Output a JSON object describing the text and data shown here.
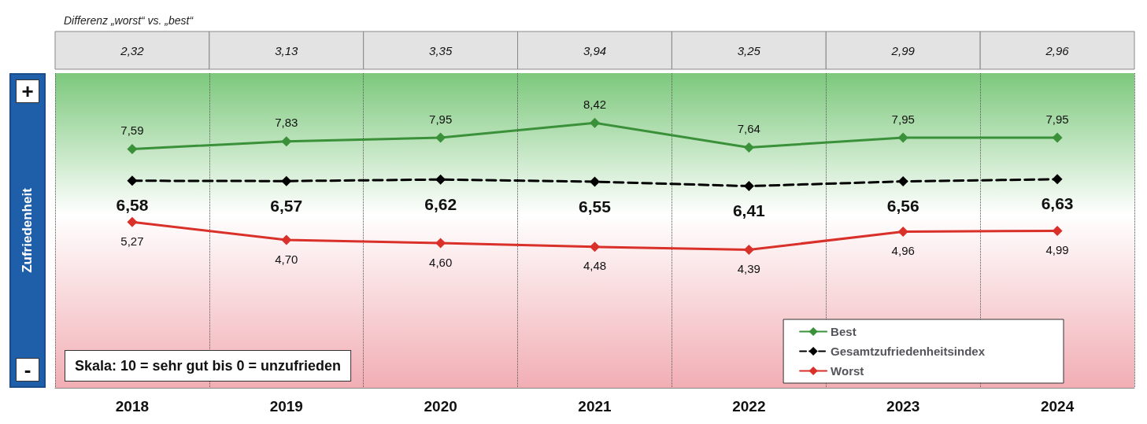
{
  "chart_data": {
    "type": "line",
    "title": "Differenz „worst“ vs. „best“",
    "ylabel": "Zufriedenheit",
    "categories": [
      "2018",
      "2019",
      "2020",
      "2021",
      "2022",
      "2023",
      "2024"
    ],
    "series": [
      {
        "name": "Best",
        "color": "#3a913a",
        "values": [
          7.59,
          7.83,
          7.95,
          8.42,
          7.64,
          7.95,
          7.95
        ],
        "value_labels": [
          "7,59",
          "7,83",
          "7,95",
          "8,42",
          "7,64",
          "7,95",
          "7,95"
        ]
      },
      {
        "name": "Gesamtzufriedenheitsindex",
        "color": "#000000",
        "line_style": "dashed",
        "values": [
          6.58,
          6.57,
          6.62,
          6.55,
          6.41,
          6.56,
          6.63
        ],
        "value_labels": [
          "6,58",
          "6,57",
          "6,62",
          "6,55",
          "6,41",
          "6,56",
          "6,63"
        ]
      },
      {
        "name": "Worst",
        "color": "#d9302a",
        "values": [
          5.27,
          4.7,
          4.6,
          4.48,
          4.39,
          4.96,
          4.99
        ],
        "value_labels": [
          "5,27",
          "4,70",
          "4,60",
          "4,48",
          "4,39",
          "4,96",
          "4,99"
        ]
      }
    ],
    "ylim": [
      0,
      10
    ],
    "tick_labels": "x",
    "grid": "x",
    "marker": "diamond",
    "line_style": "solid",
    "legend": "bottom right",
    "annotations": [
      "2,32",
      "3,13",
      "3,35",
      "3,94",
      "3,25",
      "2,99",
      "2,96",
      "+",
      "-",
      "Skala: 10 = sehr gut bis 0 = unzufrieden"
    ]
  }
}
